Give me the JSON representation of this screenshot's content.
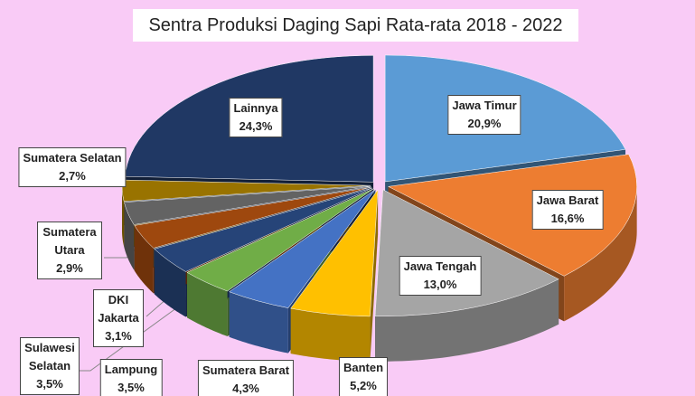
{
  "chart_data": {
    "type": "pie",
    "title": "Sentra Produksi Daging Sapi Rata-rata 2018 - 2022",
    "categories": [
      "Jawa Timur",
      "Jawa Barat",
      "Jawa Tengah",
      "Banten",
      "Sumatera Barat",
      "Lampung",
      "Sulawesi Selatan",
      "DKI Jakarta",
      "Sumatera Utara",
      "Sumatera Selatan",
      "Lainnya"
    ],
    "values": [
      20.9,
      16.6,
      13.0,
      5.2,
      4.3,
      3.5,
      3.5,
      3.1,
      2.9,
      2.7,
      24.3
    ],
    "value_labels": [
      "20,9%",
      "16,6%",
      "13,0%",
      "5,2%",
      "4,3%",
      "3,5%",
      "3,5%",
      "3,1%",
      "2,9%",
      "2,7%",
      "24,3%"
    ],
    "colors": [
      "#5b9bd5",
      "#ed7d31",
      "#a5a5a5",
      "#ffc000",
      "#4472c4",
      "#70ad47",
      "#264478",
      "#9e480e",
      "#636363",
      "#997300",
      "#203864"
    ]
  }
}
